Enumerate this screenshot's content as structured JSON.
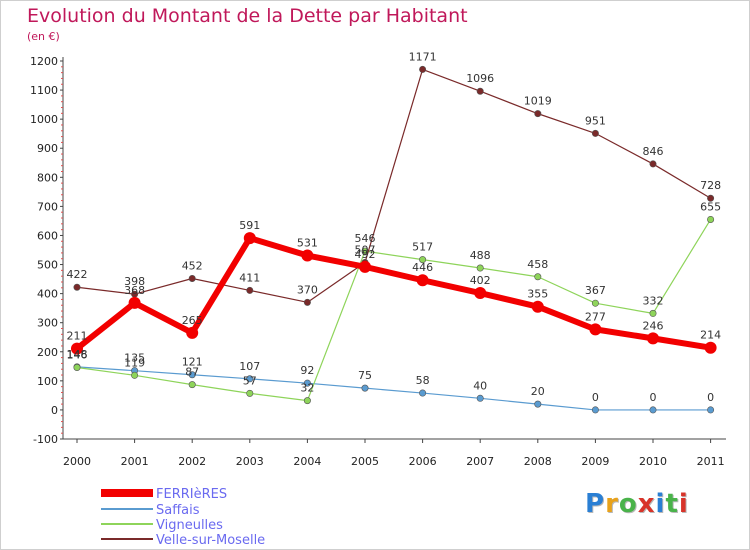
{
  "header": {
    "title": "Evolution du Montant de la Dette par Habitant",
    "unit": "(en €)"
  },
  "logo": {
    "text": "Proxiti"
  },
  "colors": {
    "FERRIèRES": "#f20000",
    "Saffais": "#5a9bd0",
    "Vigneulles": "#8ed45a",
    "Velle-sur-Moselle": "#7a2a2a",
    "title": "#c0185a",
    "legend_text": "#6a6af0"
  },
  "chart_data": {
    "type": "line",
    "title": "Evolution du Montant de la Dette par Habitant",
    "ylabel": "(en €)",
    "xlabel": "",
    "x": [
      "2000",
      "2001",
      "2002",
      "2003",
      "2004",
      "2005",
      "2006",
      "2007",
      "2008",
      "2009",
      "2010",
      "2011"
    ],
    "ylim": [
      -100,
      1200
    ],
    "yticks": [
      -100,
      0,
      100,
      200,
      300,
      400,
      500,
      600,
      700,
      800,
      900,
      1000,
      1100,
      1200
    ],
    "grid": false,
    "legend_position": "bottom-left",
    "series": [
      {
        "name": "FERRIèRES",
        "values": [
          211,
          368,
          265,
          591,
          531,
          492,
          446,
          402,
          355,
          277,
          246,
          214
        ],
        "labels": [
          "211",
          "368",
          "265",
          "591",
          "531",
          "492",
          "446",
          "402",
          "355",
          "277",
          "246",
          "214"
        ]
      },
      {
        "name": "Saffais",
        "values": [
          148,
          135,
          121,
          107,
          92,
          75,
          58,
          40,
          20,
          0,
          0,
          0
        ],
        "labels": [
          "148",
          "135",
          "121",
          "107",
          "92",
          "75",
          "58",
          "40",
          "20",
          "0",
          "0",
          "0"
        ]
      },
      {
        "name": "Vigneulles",
        "values": [
          146,
          119,
          87,
          57,
          32,
          546,
          517,
          488,
          458,
          367,
          332,
          655
        ],
        "labels": [
          "146",
          "119",
          "87",
          "57",
          "32",
          "546",
          "517",
          "488",
          "458",
          "367",
          "332",
          "655"
        ]
      },
      {
        "name": "Velle-sur-Moselle",
        "values": [
          422,
          398,
          452,
          411,
          370,
          507,
          1171,
          1096,
          1019,
          951,
          846,
          728
        ],
        "labels": [
          "422",
          "398",
          "452",
          "411",
          "370",
          "507",
          "1171",
          "1096",
          "1019",
          "951",
          "846",
          "728"
        ]
      }
    ]
  }
}
